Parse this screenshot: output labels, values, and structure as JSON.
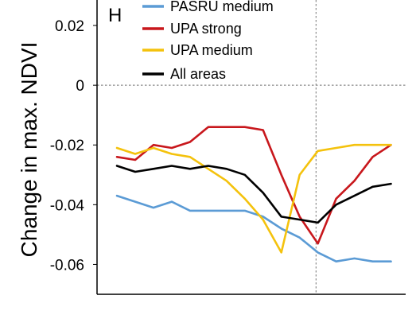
{
  "chart_data": {
    "type": "line",
    "panel_label": "H",
    "ylabel": "Change in max. NDVI",
    "xlabel": "",
    "ylim": [
      -0.07,
      0.028
    ],
    "xlim": [
      0,
      15.5
    ],
    "yticks": [
      0.02,
      0,
      -0.02,
      -0.04,
      -0.06
    ],
    "ytick_labels": [
      "0.02",
      "0",
      "-0.02",
      "-0.04",
      "-0.06"
    ],
    "reference_lines": {
      "horizontal_y": 0,
      "vertical_x": 10.9
    },
    "x": [
      0,
      1,
      2,
      3,
      4,
      5,
      6,
      7,
      8,
      9,
      10,
      11,
      12,
      13,
      14,
      15
    ],
    "series": [
      {
        "name": "PASRU medium",
        "color": "#5b9bd5",
        "values": [
          -0.037,
          -0.039,
          -0.041,
          -0.039,
          -0.042,
          -0.042,
          -0.042,
          -0.042,
          -0.044,
          -0.048,
          -0.051,
          -0.056,
          -0.059,
          -0.058,
          -0.059,
          -0.059
        ]
      },
      {
        "name": "UPA strong",
        "color": "#c8171c",
        "values": [
          -0.024,
          -0.025,
          -0.02,
          -0.021,
          -0.019,
          -0.014,
          -0.014,
          -0.014,
          -0.015,
          -0.03,
          -0.044,
          -0.053,
          -0.038,
          -0.032,
          -0.024,
          -0.02
        ]
      },
      {
        "name": "UPA medium",
        "color": "#f4c20d",
        "values": [
          -0.021,
          -0.023,
          -0.021,
          -0.023,
          -0.024,
          -0.028,
          -0.032,
          -0.038,
          -0.045,
          -0.056,
          -0.03,
          -0.022,
          -0.021,
          -0.02,
          -0.02,
          -0.02
        ]
      },
      {
        "name": "All areas",
        "color": "#000000",
        "values": [
          -0.027,
          -0.029,
          -0.028,
          -0.027,
          -0.028,
          -0.027,
          -0.028,
          -0.03,
          -0.036,
          -0.044,
          -0.045,
          -0.046,
          -0.04,
          -0.037,
          -0.034,
          -0.033
        ]
      }
    ],
    "legend": [
      {
        "name": "PASRU medium",
        "color": "#5b9bd5"
      },
      {
        "name": "UPA strong",
        "color": "#c8171c"
      },
      {
        "name": "UPA medium",
        "color": "#f4c20d"
      },
      {
        "name": "All areas",
        "color": "#000000"
      }
    ]
  }
}
